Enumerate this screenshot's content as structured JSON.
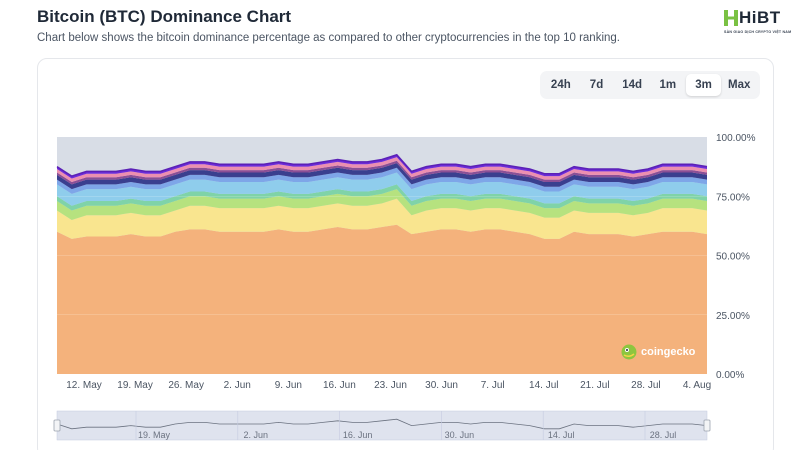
{
  "header": {
    "title": "Bitcoin (BTC) Dominance Chart",
    "subtitle": "Chart below shows the bitcoin dominance percentage as compared to other cryptocurrencies in the top 10 ranking."
  },
  "logo": {
    "text": "HiBT",
    "tagline": "SÀN GIAO DỊCH CRYPTO VIỆT NAM",
    "brand_color": "#7ac143"
  },
  "range_selector": {
    "options": [
      {
        "label": "24h"
      },
      {
        "label": "7d"
      },
      {
        "label": "14d"
      },
      {
        "label": "1m"
      },
      {
        "label": "3m"
      },
      {
        "label": "Max"
      }
    ],
    "selected": "3m"
  },
  "watermark": {
    "text": "coingecko",
    "icon": "gecko-icon"
  },
  "chart_data": {
    "type": "area",
    "stacked": true,
    "ylim": [
      0,
      100
    ],
    "y_ticks": [
      "0.00%",
      "25.00%",
      "50.00%",
      "75.00%",
      "100.00%"
    ],
    "x_ticks": [
      "12. May",
      "19. May",
      "26. May",
      "2. Jun",
      "9. Jun",
      "16. Jun",
      "23. Jun",
      "30. Jun",
      "7. Jul",
      "14. Jul",
      "21. Jul",
      "28. Jul",
      "4. Aug"
    ],
    "x": [
      "9. May",
      "11. May",
      "13. May",
      "15. May",
      "17. May",
      "19. May",
      "21. May",
      "23. May",
      "25. May",
      "27. May",
      "29. May",
      "31. May",
      "2. Jun",
      "4. Jun",
      "6. Jun",
      "8. Jun",
      "10. Jun",
      "12. Jun",
      "14. Jun",
      "16. Jun",
      "18. Jun",
      "20. Jun",
      "22. Jun",
      "24. Jun",
      "26. Jun",
      "28. Jun",
      "30. Jun",
      "2. Jul",
      "4. Jul",
      "6. Jul",
      "8. Jul",
      "10. Jul",
      "12. Jul",
      "14. Jul",
      "16. Jul",
      "18. Jul",
      "20. Jul",
      "22. Jul",
      "24. Jul",
      "26. Jul",
      "28. Jul",
      "30. Jul",
      "1. Aug",
      "3. Aug",
      "5. Aug"
    ],
    "bitcoin_share": [
      60,
      57,
      58,
      58,
      58,
      59,
      58,
      58,
      60,
      61,
      61,
      60,
      60,
      60,
      60,
      61,
      60,
      60,
      61,
      62,
      61,
      61,
      62,
      63,
      59,
      60,
      61,
      61,
      60,
      61,
      61,
      60,
      59,
      57,
      57,
      60,
      59,
      59,
      59,
      58,
      59,
      60,
      60,
      60,
      59
    ],
    "series_colors": [
      "#f4b27c",
      "#f9e58f",
      "#b6e27f",
      "#7fd3a8",
      "#8fcdec",
      "#7ea6e8",
      "#3a3f8f",
      "#8b4f96",
      "#ec8fb0",
      "#6c2bd9"
    ],
    "series_increments": [
      [
        60,
        57,
        58,
        58,
        58,
        59,
        58,
        58,
        60,
        61,
        61,
        60,
        60,
        60,
        60,
        61,
        60,
        60,
        61,
        62,
        61,
        61,
        62,
        63,
        59,
        60,
        61,
        61,
        60,
        61,
        61,
        60,
        59,
        57,
        57,
        60,
        59,
        59,
        59,
        58,
        59,
        60,
        60,
        60,
        59
      ],
      [
        9,
        8,
        9,
        9,
        9,
        9,
        9,
        9,
        9,
        10,
        10,
        10,
        10,
        10,
        10,
        10,
        10,
        10,
        10,
        10,
        10,
        10,
        10,
        11,
        8,
        9,
        9,
        9,
        9,
        9,
        9,
        9,
        9,
        9,
        9,
        9,
        9,
        9,
        9,
        9,
        9,
        10,
        10,
        10,
        10
      ],
      [
        4,
        4,
        4,
        4,
        4,
        4,
        4,
        4,
        4,
        4,
        4,
        4,
        4,
        4,
        4,
        4,
        4,
        4,
        4,
        4,
        4,
        4,
        4,
        4,
        4,
        4,
        4,
        4,
        4,
        4,
        4,
        4,
        4,
        4,
        4,
        4,
        4,
        4,
        4,
        4,
        4,
        4,
        4,
        4,
        4
      ],
      [
        2,
        2,
        2,
        2,
        2,
        2,
        2,
        2,
        2,
        2,
        2,
        2,
        2,
        2,
        2,
        2,
        2,
        2,
        2,
        2,
        2,
        2,
        2,
        2,
        2,
        2,
        2,
        2,
        2,
        2,
        2,
        2,
        2,
        2,
        2,
        2,
        2,
        2,
        2,
        2,
        2,
        2,
        2,
        2,
        2
      ],
      [
        5,
        5,
        5,
        5,
        5,
        5,
        5,
        5,
        5,
        5,
        5,
        5,
        5,
        5,
        5,
        5,
        5,
        5,
        5,
        5,
        5,
        5,
        5,
        5,
        5,
        5,
        5,
        5,
        5,
        5,
        5,
        5,
        5,
        5,
        5,
        5,
        5,
        5,
        5,
        5,
        5,
        5,
        5,
        5,
        5
      ],
      [
        2,
        2,
        2,
        2,
        2,
        2,
        2,
        2,
        2,
        2,
        2,
        2,
        2,
        2,
        2,
        2,
        2,
        2,
        2,
        2,
        2,
        2,
        2,
        2,
        2,
        2,
        2,
        2,
        2,
        2,
        2,
        2,
        2,
        2,
        2,
        2,
        2,
        2,
        2,
        2,
        2,
        2,
        2,
        2,
        2
      ],
      [
        2,
        2,
        2,
        2,
        2,
        2,
        2,
        2,
        2,
        2,
        2,
        2,
        2,
        2,
        2,
        2,
        2,
        2,
        2,
        2,
        2,
        2,
        2,
        2,
        2,
        2,
        2,
        2,
        2,
        2,
        2,
        2,
        2,
        2,
        2,
        2,
        2,
        2,
        2,
        2,
        2,
        2,
        2,
        2,
        2
      ],
      [
        1,
        1,
        1,
        1,
        1,
        1,
        1,
        1,
        1,
        1,
        1,
        1,
        1,
        1,
        1,
        1,
        1,
        1,
        1,
        1,
        1,
        1,
        1,
        1,
        1,
        1,
        1,
        1,
        1,
        1,
        1,
        1,
        1,
        1,
        1,
        1,
        1,
        1,
        1,
        1,
        1,
        1,
        1,
        1,
        1
      ],
      [
        1.5,
        1.5,
        1.5,
        1.5,
        1.5,
        1.5,
        1.5,
        1.5,
        1.5,
        1.5,
        1.5,
        1.5,
        1.5,
        1.5,
        1.5,
        1.5,
        1.5,
        1.5,
        1.5,
        1.5,
        1.5,
        1.5,
        1.5,
        1.5,
        1.5,
        1.5,
        1.5,
        1.5,
        1.5,
        1.5,
        1.5,
        1.5,
        1.5,
        1.5,
        1.5,
        1.5,
        1.5,
        1.5,
        1.5,
        1.5,
        1.5,
        1.5,
        1.5,
        1.5,
        1.5
      ],
      [
        1,
        1,
        1,
        1,
        1,
        1,
        1,
        1,
        1,
        1,
        1,
        1,
        1,
        1,
        1,
        1,
        1,
        1,
        1,
        1,
        1,
        1,
        1,
        1,
        1,
        1,
        1,
        1,
        1,
        1,
        1,
        1,
        1,
        1,
        1,
        1,
        1,
        1,
        1,
        1,
        1,
        1,
        1,
        1,
        1
      ]
    ],
    "navigator_ticks": [
      "19. May",
      "2. Jun",
      "16. Jun",
      "30. Jun",
      "14. Jul",
      "28. Jul"
    ]
  }
}
